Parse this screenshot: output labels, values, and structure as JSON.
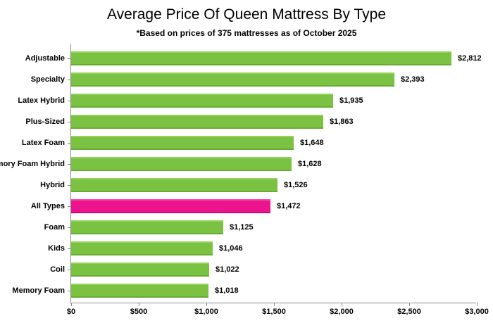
{
  "chart_data": {
    "type": "bar",
    "orientation": "horizontal",
    "title": "Average Price Of Queen Mattress By Type",
    "subtitle": "*Based on prices of 375 mattresses as of October 2025",
    "categories": [
      "Adjustable",
      "Specialty",
      "Latex Hybrid",
      "Plus-Sized",
      "Latex Foam",
      "Memory Foam Hybrid",
      "Hybrid",
      "All Types",
      "Foam",
      "Kids",
      "Coil",
      "Memory Foam"
    ],
    "values": [
      2812,
      2393,
      1935,
      1863,
      1648,
      1628,
      1526,
      1472,
      1125,
      1046,
      1022,
      1018
    ],
    "value_labels": [
      "$2,812",
      "$2,393",
      "$1,935",
      "$1,863",
      "$1,648",
      "$1,628",
      "$1,526",
      "$1,472",
      "$1,125",
      "$1,046",
      "$1,022",
      "$1,018"
    ],
    "highlight_category": "All Types",
    "xlabel": "",
    "ylabel": "",
    "xlim": [
      0,
      3000
    ],
    "x_tick_values": [
      0,
      500,
      1000,
      1500,
      2000,
      2500,
      3000
    ],
    "x_tick_labels": [
      "$0",
      "$500",
      "$1,000",
      "$1,500",
      "$2,000",
      "$2,500",
      "$3,000"
    ],
    "grid": false,
    "legend": false,
    "colors": {
      "bar": "#7cc242",
      "highlight_bar": "#ec148c",
      "axis": "#8c8c8c",
      "text": "#000000",
      "background": "#ffffff"
    }
  }
}
